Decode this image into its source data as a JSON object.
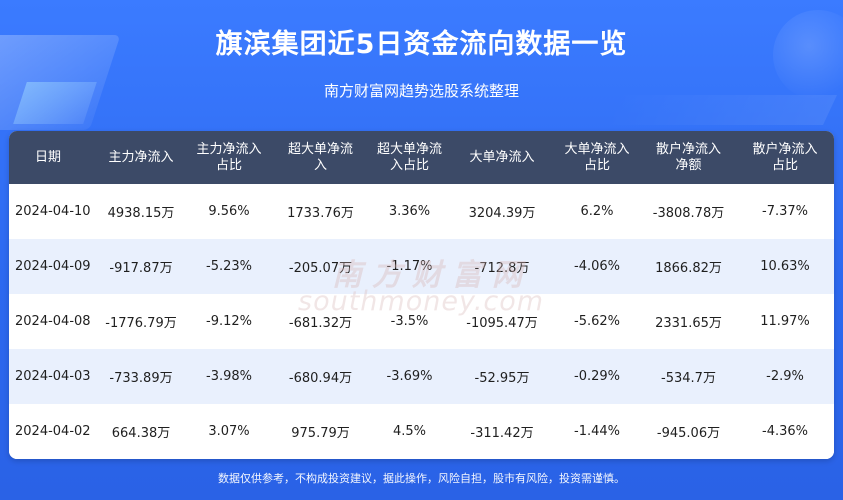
{
  "title": "旗滨集团近5日资金流向数据一览",
  "subtitle": "南方财富网趋势选股系统整理",
  "table": {
    "headers": [
      [
        "日期"
      ],
      [
        "主力净流入"
      ],
      [
        "主力净流入",
        "占比"
      ],
      [
        "超大单净流",
        "入"
      ],
      [
        "超大单净流",
        "入占比"
      ],
      [
        "大单净流入"
      ],
      [
        "大单净流入",
        "占比"
      ],
      [
        "散户净流入",
        "净额"
      ],
      [
        "散户净流入",
        "占比"
      ]
    ],
    "rows": [
      [
        "2024-04-10",
        "4938.15万",
        "9.56%",
        "1733.76万",
        "3.36%",
        "3204.39万",
        "6.2%",
        "-3808.78万",
        "-7.37%"
      ],
      [
        "2024-04-09",
        "-917.87万",
        "-5.23%",
        "-205.07万",
        "-1.17%",
        "-712.8万",
        "-4.06%",
        "1866.82万",
        "10.63%"
      ],
      [
        "2024-04-08",
        "-1776.79万",
        "-9.12%",
        "-681.32万",
        "-3.5%",
        "-1095.47万",
        "-5.62%",
        "2331.65万",
        "11.97%"
      ],
      [
        "2024-04-03",
        "-733.89万",
        "-3.98%",
        "-680.94万",
        "-3.69%",
        "-52.95万",
        "-0.29%",
        "-534.7万",
        "-2.9%"
      ],
      [
        "2024-04-02",
        "664.38万",
        "3.07%",
        "975.79万",
        "4.5%",
        "-311.42万",
        "-1.44%",
        "-945.06万",
        "-4.36%"
      ]
    ]
  },
  "watermark": {
    "cn": "南方财富网",
    "en": "southmoney.com"
  },
  "footer": "数据仅供参考，不构成投资建议，据此操作，风险自担，股市有风险，投资需谨慎。",
  "colors": {
    "background": "#2f6ef2",
    "header_row": "#3c4a67",
    "alt_row": "#e9f0fd"
  }
}
